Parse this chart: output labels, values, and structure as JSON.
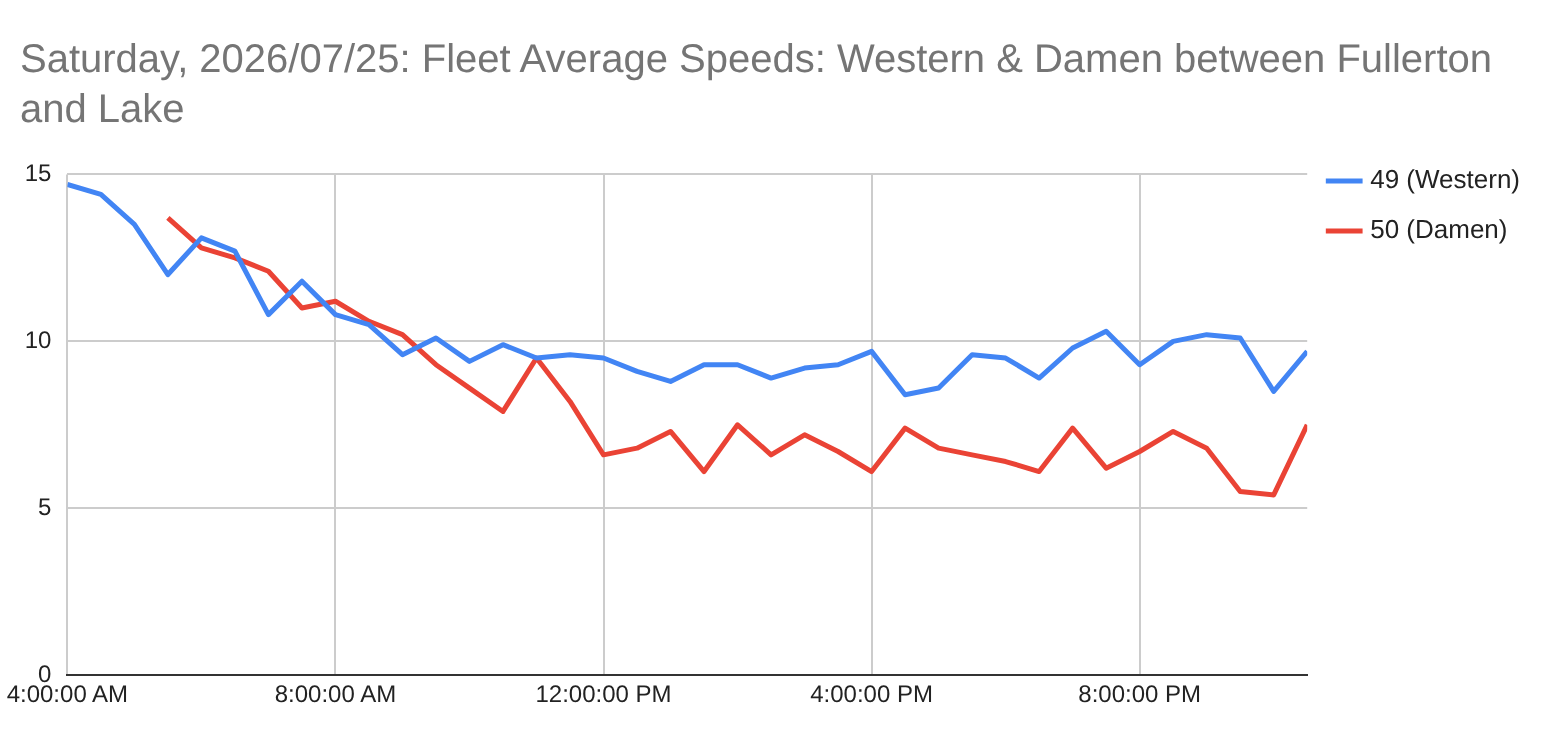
{
  "chart_data": {
    "type": "line",
    "title": "Saturday, 2026/07/25: Fleet Average Speeds: Western & Damen between Fullerton and Lake",
    "x": [
      4,
      4.5,
      5,
      5.5,
      6,
      6.5,
      7,
      7.5,
      8,
      8.5,
      9,
      9.5,
      10,
      10.5,
      11,
      11.5,
      12,
      12.5,
      13,
      13.5,
      14,
      14.5,
      15,
      15.5,
      16,
      16.5,
      17,
      17.5,
      18,
      18.5,
      19,
      19.5,
      20,
      20.5,
      21,
      21.5,
      22,
      22.5
    ],
    "series": [
      {
        "name": "49 (Western)",
        "color": "#4285f4",
        "values": [
          14.7,
          14.4,
          13.5,
          12.0,
          13.1,
          12.7,
          10.8,
          11.8,
          10.8,
          10.5,
          9.6,
          10.1,
          9.4,
          9.9,
          9.5,
          9.6,
          9.5,
          9.1,
          8.8,
          9.3,
          9.3,
          8.9,
          9.2,
          9.3,
          9.7,
          8.4,
          8.6,
          9.6,
          9.5,
          8.9,
          9.8,
          10.3,
          9.3,
          10.0,
          10.2,
          10.1,
          8.5,
          9.7
        ]
      },
      {
        "name": "50 (Damen)",
        "color": "#ea4335",
        "values": [
          null,
          null,
          null,
          13.7,
          12.8,
          12.5,
          12.1,
          11.0,
          11.2,
          10.6,
          10.2,
          9.3,
          8.6,
          7.9,
          9.5,
          8.2,
          6.6,
          6.8,
          7.3,
          6.1,
          7.5,
          6.6,
          7.2,
          6.7,
          6.1,
          7.4,
          6.8,
          6.6,
          6.4,
          6.1,
          7.4,
          6.2,
          6.7,
          7.3,
          6.8,
          5.5,
          5.4,
          7.5
        ]
      }
    ],
    "xlim": [
      4,
      22.5
    ],
    "xticks": [
      {
        "value": 4,
        "label": "4:00:00 AM"
      },
      {
        "value": 8,
        "label": "8:00:00 AM"
      },
      {
        "value": 12,
        "label": "12:00:00 PM"
      },
      {
        "value": 16,
        "label": "4:00:00 PM"
      },
      {
        "value": 20,
        "label": "8:00:00 PM"
      }
    ],
    "ylim": [
      0,
      15
    ],
    "yticks": [
      0,
      5,
      10,
      15
    ],
    "grid": true,
    "legend": "right",
    "marker": "none",
    "line_style": "solid"
  }
}
